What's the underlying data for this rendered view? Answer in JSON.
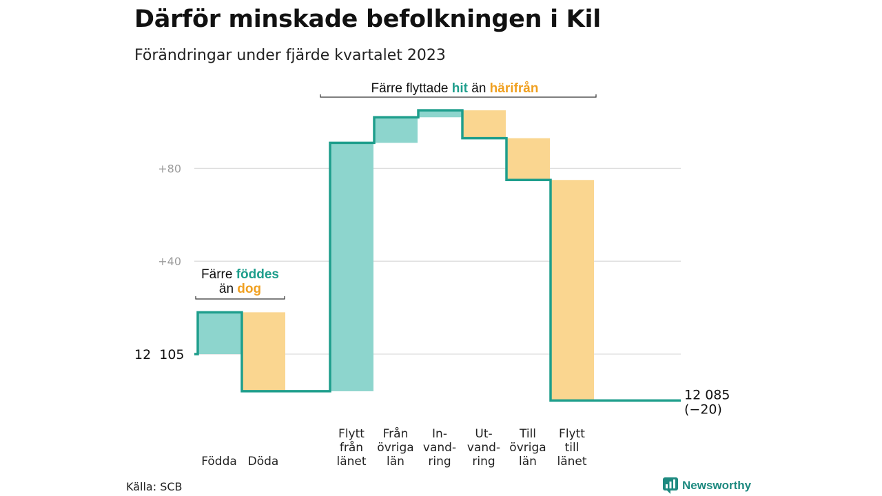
{
  "title": "Därför minskade befolkningen i Kil",
  "subtitle": "Förändringar under fjärde kvartalet 2023",
  "source": "Källa: SCB",
  "brand": {
    "name": "Newsworthy",
    "icon": "newsworthy-logo-icon"
  },
  "colors": {
    "increase": "#8dd5cd",
    "decrease": "#fad690",
    "line": "#1e9e8c",
    "grid": "#dddddd"
  },
  "chart_data": {
    "type": "waterfall",
    "start": {
      "label": "12  105",
      "value": 12105
    },
    "end": {
      "label": "12 085",
      "change_label": "(−20)",
      "value": 12085
    },
    "yticks": [
      {
        "value": 80,
        "label": "+80"
      },
      {
        "value": 40,
        "label": "+40"
      }
    ],
    "ylim": [
      -20,
      110
    ],
    "steps": [
      {
        "label_lines": [
          "Födda"
        ],
        "change": 18,
        "direction": "increase"
      },
      {
        "label_lines": [
          "Döda"
        ],
        "change": -34,
        "direction": "decrease"
      },
      {
        "label_lines": [
          "Flytt",
          "från",
          "länet"
        ],
        "change": 107,
        "direction": "increase"
      },
      {
        "label_lines": [
          "Från",
          "övriga",
          "län"
        ],
        "change": 11,
        "direction": "increase"
      },
      {
        "label_lines": [
          "In-",
          "vand-",
          "ring"
        ],
        "change": 3,
        "direction": "increase"
      },
      {
        "label_lines": [
          "Ut-",
          "vand-",
          "ring"
        ],
        "change": -12,
        "direction": "decrease"
      },
      {
        "label_lines": [
          "Till",
          "övriga",
          "län"
        ],
        "change": -18,
        "direction": "decrease"
      },
      {
        "label_lines": [
          "Flytt",
          "till",
          "länet"
        ],
        "change": -95,
        "direction": "decrease"
      }
    ],
    "annotations": [
      {
        "group": "births",
        "text_parts": [
          {
            "text": "Färre",
            "style": "plain"
          },
          {
            "text": "föddes",
            "style": "teal"
          },
          {
            "text": "än",
            "style": "plain"
          },
          {
            "text": "dog",
            "style": "orange"
          }
        ]
      },
      {
        "group": "moves",
        "text_parts": [
          {
            "text": "Färre flyttade",
            "style": "plain"
          },
          {
            "text": "hit",
            "style": "teal"
          },
          {
            "text": "än",
            "style": "plain"
          },
          {
            "text": "härifrån",
            "style": "orange"
          }
        ]
      }
    ]
  }
}
